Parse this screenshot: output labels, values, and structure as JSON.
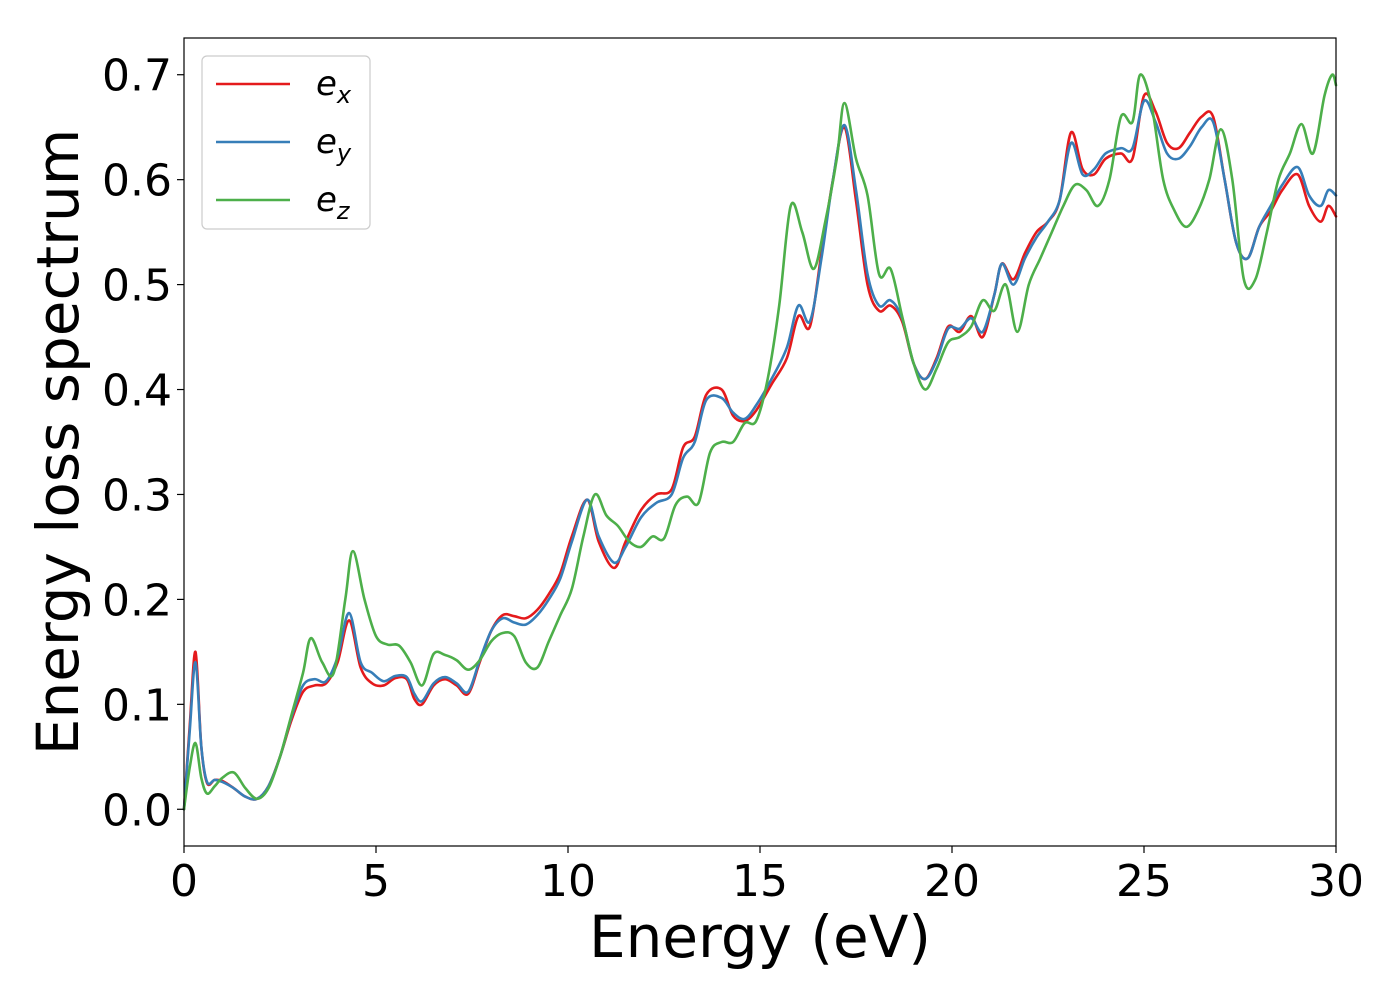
{
  "chart_data": {
    "type": "line",
    "xlabel": "Energy (eV)",
    "ylabel": "Energy loss spectrum",
    "xlim": [
      0,
      30
    ],
    "ylim": [
      -0.035,
      0.735
    ],
    "xticks": [
      0,
      5,
      10,
      15,
      20,
      25,
      30
    ],
    "yticks": [
      0.0,
      0.1,
      0.2,
      0.3,
      0.4,
      0.5,
      0.6,
      0.7
    ],
    "xtick_labels": [
      "0",
      "5",
      "10",
      "15",
      "20",
      "25",
      "30"
    ],
    "ytick_labels": [
      "0.0",
      "0.1",
      "0.2",
      "0.3",
      "0.4",
      "0.5",
      "0.6",
      "0.7"
    ],
    "grid": false,
    "legend_position": "top-left",
    "series": [
      {
        "name": "e_x",
        "label_main": "e",
        "label_sub": "x",
        "color": "#e41a1c",
        "x": [
          0,
          0.15,
          0.3,
          0.45,
          0.6,
          0.8,
          1.0,
          1.3,
          1.6,
          1.9,
          2.2,
          2.5,
          2.8,
          3.1,
          3.4,
          3.7,
          4.0,
          4.3,
          4.6,
          4.9,
          5.2,
          5.5,
          5.8,
          6.0,
          6.2,
          6.5,
          6.8,
          7.1,
          7.4,
          7.7,
          8.0,
          8.3,
          8.6,
          8.9,
          9.2,
          9.5,
          9.8,
          10.1,
          10.5,
          10.8,
          11.2,
          11.5,
          11.9,
          12.3,
          12.7,
          13.0,
          13.3,
          13.6,
          14.0,
          14.3,
          14.6,
          14.9,
          15.3,
          15.7,
          16.0,
          16.3,
          16.6,
          16.9,
          17.2,
          17.5,
          17.8,
          18.1,
          18.4,
          18.7,
          19.0,
          19.3,
          19.6,
          19.9,
          20.2,
          20.5,
          20.8,
          21.1,
          21.3,
          21.6,
          21.9,
          22.2,
          22.5,
          22.8,
          23.1,
          23.4,
          23.7,
          24.0,
          24.4,
          24.7,
          25.0,
          25.3,
          25.6,
          25.9,
          26.2,
          26.5,
          26.8,
          27.1,
          27.4,
          27.7,
          28.0,
          28.3,
          28.6,
          29.0,
          29.3,
          29.6,
          29.8,
          30.0
        ],
        "y": [
          0.0,
          0.08,
          0.15,
          0.06,
          0.025,
          0.028,
          0.027,
          0.02,
          0.012,
          0.01,
          0.022,
          0.05,
          0.085,
          0.112,
          0.118,
          0.12,
          0.14,
          0.18,
          0.135,
          0.12,
          0.118,
          0.125,
          0.124,
          0.105,
          0.1,
          0.118,
          0.124,
          0.118,
          0.11,
          0.14,
          0.17,
          0.185,
          0.184,
          0.182,
          0.19,
          0.205,
          0.225,
          0.26,
          0.295,
          0.255,
          0.23,
          0.255,
          0.285,
          0.3,
          0.305,
          0.345,
          0.355,
          0.395,
          0.4,
          0.375,
          0.37,
          0.38,
          0.405,
          0.43,
          0.47,
          0.46,
          0.53,
          0.6,
          0.65,
          0.58,
          0.5,
          0.475,
          0.48,
          0.465,
          0.425,
          0.41,
          0.43,
          0.46,
          0.455,
          0.47,
          0.45,
          0.49,
          0.52,
          0.505,
          0.53,
          0.55,
          0.56,
          0.58,
          0.645,
          0.61,
          0.605,
          0.62,
          0.625,
          0.62,
          0.68,
          0.665,
          0.635,
          0.63,
          0.645,
          0.66,
          0.66,
          0.6,
          0.54,
          0.525,
          0.555,
          0.57,
          0.59,
          0.605,
          0.575,
          0.56,
          0.575,
          0.565
        ]
      },
      {
        "name": "e_y",
        "label_main": "e",
        "label_sub": "y",
        "color": "#377eb8",
        "x": [
          0,
          0.15,
          0.3,
          0.45,
          0.6,
          0.8,
          1.0,
          1.3,
          1.6,
          1.9,
          2.2,
          2.5,
          2.8,
          3.1,
          3.4,
          3.7,
          4.0,
          4.3,
          4.6,
          4.9,
          5.2,
          5.5,
          5.8,
          6.0,
          6.2,
          6.5,
          6.8,
          7.1,
          7.4,
          7.7,
          8.0,
          8.3,
          8.6,
          8.9,
          9.2,
          9.5,
          9.8,
          10.1,
          10.5,
          10.8,
          11.2,
          11.5,
          11.9,
          12.3,
          12.7,
          13.0,
          13.3,
          13.6,
          14.0,
          14.3,
          14.6,
          14.9,
          15.3,
          15.7,
          16.0,
          16.3,
          16.6,
          16.9,
          17.2,
          17.5,
          17.8,
          18.1,
          18.4,
          18.7,
          19.0,
          19.3,
          19.6,
          19.9,
          20.2,
          20.5,
          20.8,
          21.1,
          21.3,
          21.6,
          21.9,
          22.2,
          22.5,
          22.8,
          23.1,
          23.4,
          23.7,
          24.0,
          24.4,
          24.7,
          25.0,
          25.3,
          25.6,
          25.9,
          26.2,
          26.5,
          26.8,
          27.1,
          27.4,
          27.7,
          28.0,
          28.3,
          28.6,
          29.0,
          29.3,
          29.6,
          29.8,
          30.0
        ],
        "y": [
          0.0,
          0.075,
          0.14,
          0.06,
          0.026,
          0.028,
          0.026,
          0.02,
          0.012,
          0.01,
          0.022,
          0.05,
          0.088,
          0.118,
          0.124,
          0.122,
          0.145,
          0.187,
          0.14,
          0.13,
          0.122,
          0.127,
          0.126,
          0.11,
          0.103,
          0.12,
          0.126,
          0.12,
          0.112,
          0.142,
          0.17,
          0.182,
          0.178,
          0.176,
          0.185,
          0.2,
          0.22,
          0.255,
          0.295,
          0.26,
          0.235,
          0.25,
          0.278,
          0.292,
          0.3,
          0.335,
          0.35,
          0.39,
          0.392,
          0.378,
          0.372,
          0.385,
          0.41,
          0.44,
          0.48,
          0.465,
          0.525,
          0.6,
          0.652,
          0.59,
          0.51,
          0.48,
          0.485,
          0.468,
          0.425,
          0.41,
          0.428,
          0.458,
          0.458,
          0.468,
          0.455,
          0.49,
          0.52,
          0.5,
          0.525,
          0.545,
          0.56,
          0.58,
          0.635,
          0.605,
          0.61,
          0.625,
          0.63,
          0.63,
          0.675,
          0.655,
          0.625,
          0.62,
          0.632,
          0.65,
          0.655,
          0.6,
          0.54,
          0.525,
          0.555,
          0.575,
          0.595,
          0.612,
          0.585,
          0.575,
          0.59,
          0.585
        ]
      },
      {
        "name": "e_z",
        "label_main": "e",
        "label_sub": "z",
        "color": "#4daf4a",
        "x": [
          0,
          0.15,
          0.3,
          0.45,
          0.6,
          0.8,
          1.0,
          1.3,
          1.6,
          1.9,
          2.2,
          2.5,
          2.8,
          3.1,
          3.3,
          3.6,
          3.9,
          4.2,
          4.4,
          4.7,
          5.0,
          5.3,
          5.6,
          5.9,
          6.2,
          6.5,
          6.8,
          7.1,
          7.4,
          7.7,
          8.0,
          8.3,
          8.6,
          8.9,
          9.2,
          9.5,
          9.8,
          10.1,
          10.4,
          10.7,
          11.0,
          11.3,
          11.6,
          11.9,
          12.2,
          12.5,
          12.8,
          13.1,
          13.4,
          13.7,
          14.0,
          14.3,
          14.6,
          14.9,
          15.2,
          15.5,
          15.8,
          16.1,
          16.4,
          16.7,
          17.0,
          17.2,
          17.5,
          17.8,
          18.1,
          18.4,
          18.7,
          19.0,
          19.3,
          19.6,
          19.9,
          20.2,
          20.5,
          20.8,
          21.1,
          21.4,
          21.7,
          22.0,
          22.3,
          22.6,
          22.9,
          23.2,
          23.5,
          23.8,
          24.1,
          24.4,
          24.7,
          24.9,
          25.2,
          25.5,
          25.8,
          26.1,
          26.4,
          26.7,
          27.0,
          27.3,
          27.6,
          27.9,
          28.2,
          28.5,
          28.8,
          29.1,
          29.4,
          29.7,
          29.9,
          30.0
        ],
        "y": [
          0.0,
          0.04,
          0.063,
          0.03,
          0.015,
          0.022,
          0.03,
          0.035,
          0.02,
          0.01,
          0.02,
          0.05,
          0.09,
          0.13,
          0.163,
          0.14,
          0.13,
          0.2,
          0.246,
          0.2,
          0.165,
          0.157,
          0.156,
          0.14,
          0.118,
          0.148,
          0.147,
          0.142,
          0.133,
          0.142,
          0.16,
          0.168,
          0.165,
          0.14,
          0.135,
          0.16,
          0.185,
          0.21,
          0.26,
          0.3,
          0.28,
          0.27,
          0.255,
          0.25,
          0.26,
          0.258,
          0.29,
          0.298,
          0.292,
          0.34,
          0.35,
          0.35,
          0.368,
          0.37,
          0.41,
          0.48,
          0.575,
          0.55,
          0.515,
          0.56,
          0.62,
          0.673,
          0.62,
          0.585,
          0.51,
          0.515,
          0.47,
          0.425,
          0.4,
          0.42,
          0.445,
          0.45,
          0.46,
          0.485,
          0.475,
          0.5,
          0.455,
          0.5,
          0.525,
          0.55,
          0.575,
          0.595,
          0.59,
          0.575,
          0.6,
          0.66,
          0.655,
          0.7,
          0.67,
          0.6,
          0.57,
          0.555,
          0.57,
          0.6,
          0.648,
          0.6,
          0.505,
          0.505,
          0.55,
          0.6,
          0.625,
          0.653,
          0.625,
          0.68,
          0.7,
          0.69
        ]
      }
    ]
  }
}
